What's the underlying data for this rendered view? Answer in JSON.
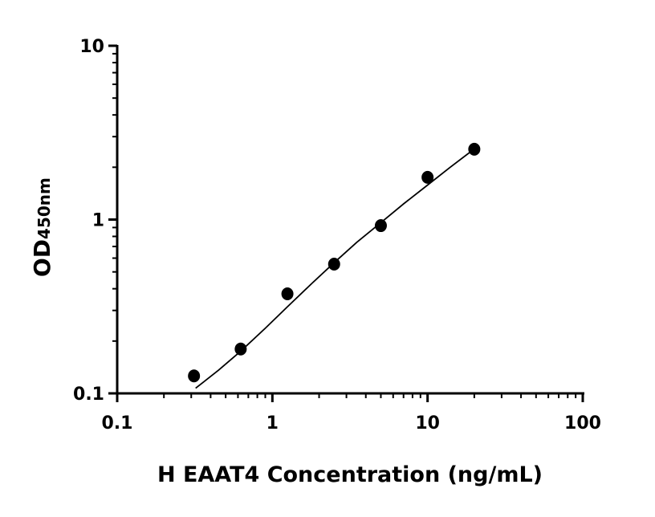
{
  "chart_data": {
    "type": "scatter",
    "xlabel": "H EAAT4 Concentration (ng/mL)",
    "ylabel_main": "OD",
    "ylabel_sub": "450nm",
    "x_scale": "log",
    "y_scale": "log",
    "xlim": [
      0.1,
      100
    ],
    "ylim": [
      0.1,
      10
    ],
    "x_ticks": [
      "0.1",
      "1",
      "10",
      "100"
    ],
    "y_ticks": [
      "0.1",
      "1",
      "10"
    ],
    "grid": false,
    "points": {
      "x": [
        0.3125,
        0.625,
        1.25,
        2.5,
        5,
        10,
        20
      ],
      "y": [
        0.126,
        0.18,
        0.374,
        0.554,
        0.923,
        1.75,
        2.54
      ]
    },
    "fit_curve": {
      "x": [
        0.32,
        0.45,
        0.625,
        0.9,
        1.25,
        1.8,
        2.5,
        3.5,
        5,
        7,
        10,
        14,
        20
      ],
      "y": [
        0.107,
        0.136,
        0.175,
        0.237,
        0.315,
        0.43,
        0.565,
        0.74,
        0.96,
        1.23,
        1.58,
        2.0,
        2.55
      ]
    },
    "colors": {
      "points": "#000000",
      "curve": "#000000"
    }
  }
}
